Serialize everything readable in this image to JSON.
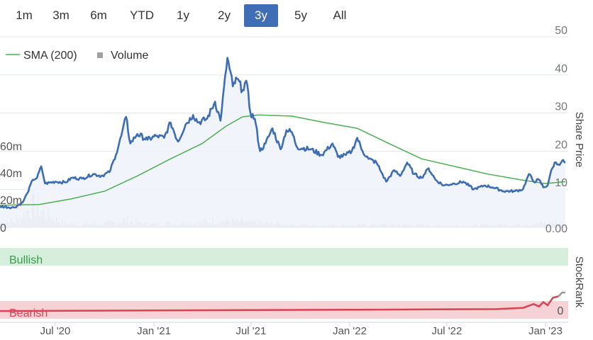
{
  "range_selector": {
    "buttons": [
      "1m",
      "3m",
      "6m",
      "YTD",
      "1y",
      "2y",
      "3y",
      "5y",
      "All"
    ],
    "active": "3y"
  },
  "legend": {
    "sma_label": "SMA (200)",
    "volume_label": "Volume"
  },
  "colors": {
    "price": "#3d6db5",
    "sma": "#4caf50",
    "volume": "#c8c8c8",
    "price_fill": "#eef2fa",
    "bullish_band": "#d6eedc",
    "bearish_band": "#f6d2d6",
    "stockrank_bearish": "#d8434f",
    "stockrank_recent": "#999999",
    "bullish_text": "#3a9a4a",
    "bearish_text": "#d8434f",
    "active_button": "#3f6eb7"
  },
  "chart_data": [
    {
      "type": "line",
      "ylabel": "Share Price",
      "yticks": [
        10,
        20,
        30,
        40,
        50
      ],
      "yticks_extra_label": "0.00",
      "ylim": [
        0,
        50
      ],
      "xticks": [
        "Jul '20",
        "Jan '21",
        "Jul '21",
        "Jan '22",
        "Jul '22",
        "Jan '23"
      ],
      "xlim": [
        "2020-03-20",
        "2023-02-07"
      ],
      "series": [
        {
          "name": "Price",
          "points": [
            [
              "2020-03-20",
              5.5
            ],
            [
              "2020-04-15",
              5.2
            ],
            [
              "2020-05-01",
              6.5
            ],
            [
              "2020-05-10",
              9.0
            ],
            [
              "2020-05-20",
              12.5
            ],
            [
              "2020-05-28",
              13.0
            ],
            [
              "2020-06-05",
              16.0
            ],
            [
              "2020-06-12",
              11.5
            ],
            [
              "2020-07-01",
              12.0
            ],
            [
              "2020-07-20",
              11.8
            ],
            [
              "2020-08-01",
              13.0
            ],
            [
              "2020-08-20",
              12.8
            ],
            [
              "2020-09-10",
              14.0
            ],
            [
              "2020-09-25",
              13.5
            ],
            [
              "2020-10-10",
              14.5
            ],
            [
              "2020-10-22",
              19.0
            ],
            [
              "2020-11-01",
              24.0
            ],
            [
              "2020-11-10",
              29.0
            ],
            [
              "2020-11-18",
              22.0
            ],
            [
              "2020-12-01",
              24.5
            ],
            [
              "2020-12-20",
              23.0
            ],
            [
              "2021-01-05",
              24.0
            ],
            [
              "2021-01-20",
              23.5
            ],
            [
              "2021-02-01",
              27.5
            ],
            [
              "2021-02-15",
              22.5
            ],
            [
              "2021-03-01",
              27.0
            ],
            [
              "2021-03-15",
              29.5
            ],
            [
              "2021-03-25",
              27.5
            ],
            [
              "2021-04-10",
              28.5
            ],
            [
              "2021-04-25",
              33.0
            ],
            [
              "2021-05-05",
              28.0
            ],
            [
              "2021-05-18",
              44.5
            ],
            [
              "2021-05-28",
              37.0
            ],
            [
              "2021-06-05",
              39.0
            ],
            [
              "2021-06-15",
              36.0
            ],
            [
              "2021-06-22",
              38.5
            ],
            [
              "2021-06-30",
              30.0
            ],
            [
              "2021-07-08",
              28.5
            ],
            [
              "2021-07-18",
              20.0
            ],
            [
              "2021-07-28",
              22.0
            ],
            [
              "2021-08-10",
              26.0
            ],
            [
              "2021-08-25",
              20.5
            ],
            [
              "2021-09-05",
              25.5
            ],
            [
              "2021-09-15",
              25.0
            ],
            [
              "2021-09-25",
              21.0
            ],
            [
              "2021-10-20",
              20.5
            ],
            [
              "2021-11-10",
              19.0
            ],
            [
              "2021-11-30",
              22.0
            ],
            [
              "2021-12-10",
              18.5
            ],
            [
              "2021-12-25",
              19.0
            ],
            [
              "2022-01-05",
              20.0
            ],
            [
              "2022-01-15",
              23.5
            ],
            [
              "2022-01-25",
              20.0
            ],
            [
              "2022-02-05",
              18.0
            ],
            [
              "2022-02-20",
              17.0
            ],
            [
              "2022-03-01",
              14.5
            ],
            [
              "2022-03-10",
              12.0
            ],
            [
              "2022-03-25",
              15.0
            ],
            [
              "2022-04-05",
              13.5
            ],
            [
              "2022-04-18",
              17.0
            ],
            [
              "2022-05-01",
              14.0
            ],
            [
              "2022-05-15",
              13.0
            ],
            [
              "2022-05-28",
              15.5
            ],
            [
              "2022-06-10",
              12.5
            ],
            [
              "2022-06-25",
              11.0
            ],
            [
              "2022-07-15",
              11.5
            ],
            [
              "2022-08-01",
              12.0
            ],
            [
              "2022-08-20",
              10.0
            ],
            [
              "2022-09-10",
              11.0
            ],
            [
              "2022-09-25",
              10.5
            ],
            [
              "2022-10-15",
              9.5
            ],
            [
              "2022-11-05",
              9.5
            ],
            [
              "2022-11-20",
              10.0
            ],
            [
              "2022-12-01",
              14.0
            ],
            [
              "2022-12-10",
              12.0
            ],
            [
              "2022-12-20",
              12.5
            ],
            [
              "2022-12-28",
              10.5
            ],
            [
              "2023-01-05",
              11.0
            ],
            [
              "2023-01-10",
              14.0
            ],
            [
              "2023-01-18",
              17.0
            ],
            [
              "2023-01-25",
              16.5
            ],
            [
              "2023-02-01",
              17.5
            ],
            [
              "2023-02-07",
              17.0
            ]
          ]
        },
        {
          "name": "SMA (200)",
          "points": [
            [
              "2020-03-20",
              5.8
            ],
            [
              "2020-06-01",
              6.0
            ],
            [
              "2020-08-01",
              7.5
            ],
            [
              "2020-10-01",
              9.5
            ],
            [
              "2020-12-01",
              13.5
            ],
            [
              "2021-02-01",
              18.0
            ],
            [
              "2021-04-01",
              22.0
            ],
            [
              "2021-05-15",
              26.5
            ],
            [
              "2021-06-15",
              29.0
            ],
            [
              "2021-07-15",
              29.5
            ],
            [
              "2021-09-15",
              29.2
            ],
            [
              "2021-11-15",
              27.5
            ],
            [
              "2022-01-15",
              26.0
            ],
            [
              "2022-03-15",
              22.0
            ],
            [
              "2022-05-15",
              18.0
            ],
            [
              "2022-07-15",
              16.0
            ],
            [
              "2022-09-15",
              14.0
            ],
            [
              "2022-11-15",
              12.5
            ],
            [
              "2023-01-01",
              11.5
            ],
            [
              "2023-02-07",
              12.0
            ]
          ]
        }
      ]
    },
    {
      "type": "bar",
      "name": "Volume",
      "yticks": [
        "0",
        "20m",
        "40m",
        "60m"
      ],
      "ylim": [
        0,
        80
      ],
      "volume_profile": [
        [
          "2020-03-20",
          8
        ],
        [
          "2020-04-20",
          12
        ],
        [
          "2020-05-10",
          30
        ],
        [
          "2020-05-25",
          45
        ],
        [
          "2020-06-10",
          25
        ],
        [
          "2020-07-15",
          8
        ],
        [
          "2020-09-01",
          5
        ],
        [
          "2020-10-25",
          10
        ],
        [
          "2020-11-10",
          14
        ],
        [
          "2020-12-15",
          6
        ],
        [
          "2021-02-10",
          7
        ],
        [
          "2021-05-18",
          12
        ],
        [
          "2021-07-20",
          8
        ],
        [
          "2021-10-01",
          4
        ],
        [
          "2022-01-15",
          4
        ],
        [
          "2022-03-15",
          5
        ],
        [
          "2022-07-01",
          3
        ],
        [
          "2022-12-01",
          6
        ],
        [
          "2023-01-15",
          8
        ],
        [
          "2023-02-07",
          5
        ]
      ]
    },
    {
      "type": "area",
      "ylabel": "StockRank",
      "ytick": "0",
      "bands": [
        "Bullish",
        "Bearish"
      ],
      "ylim": [
        0,
        100
      ],
      "series": [
        {
          "name": "StockRank",
          "points": [
            [
              "2020-03-20",
              1
            ],
            [
              "2021-01-01",
              2
            ],
            [
              "2022-01-01",
              3
            ],
            [
              "2022-10-01",
              4
            ],
            [
              "2022-11-20",
              6
            ],
            [
              "2022-12-10",
              12
            ],
            [
              "2022-12-20",
              8
            ],
            [
              "2022-12-28",
              15
            ],
            [
              "2023-01-05",
              10
            ],
            [
              "2023-01-15",
              22
            ],
            [
              "2023-01-25",
              24
            ],
            [
              "2023-02-01",
              30
            ],
            [
              "2023-02-07",
              30
            ]
          ]
        }
      ]
    }
  ]
}
